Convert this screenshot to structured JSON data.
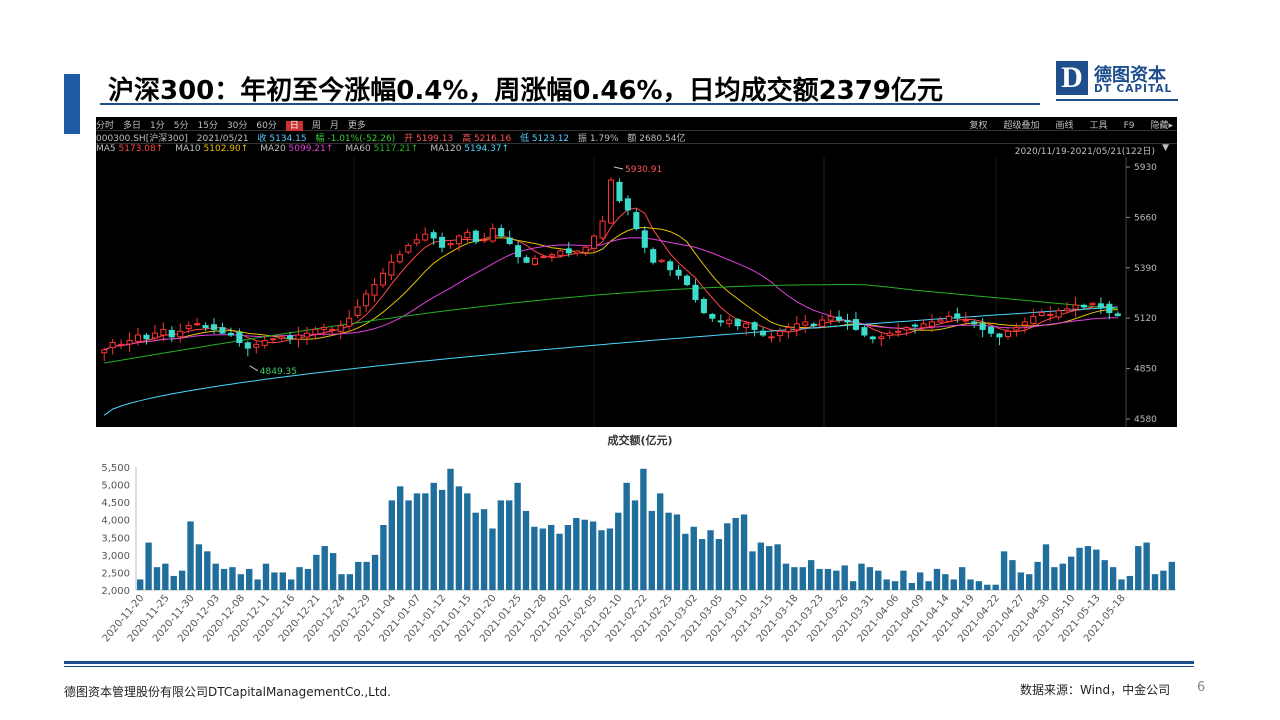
{
  "slide": {
    "title": "沪深300：年初至今涨幅0.4%，周涨幅0.46%，日均成交额2379亿元",
    "logo_letter": "D",
    "logo_cn": "德图资本",
    "logo_en": "DT CAPITAL",
    "footer_company": "德图资本管理股份有限公司DTCapitalManagementCo.,Ltd.",
    "footer_source": "数据来源：Wind，中金公司",
    "page_number": "6",
    "accent_color": "#1f5aa6",
    "brand_color": "#1f4e8c"
  },
  "kline": {
    "periods": [
      "分时",
      "多日",
      "1分",
      "5分",
      "15分",
      "30分",
      "60分",
      "日",
      "周",
      "月",
      "更多"
    ],
    "selected_period": "日",
    "tools": [
      "复权",
      "超级叠加",
      "画线",
      "工具",
      "F9",
      "隐藏▸"
    ],
    "info": {
      "code": "000300.SH[沪深300]",
      "date": "2021/05/21",
      "close": "收 5134.15",
      "change": "幅 -1.01%(-52.26)",
      "open": "开 5199.13",
      "high": "高 5216.16",
      "low": "低 5123.12",
      "amplitude": "振 1.79%",
      "amount": "额 2680.54亿"
    },
    "ma_values": [
      {
        "label": "MA5",
        "value": "5173.08↑",
        "color": "#ff4848"
      },
      {
        "label": "MA10",
        "value": "5102.90↑",
        "color": "#e6c000"
      },
      {
        "label": "MA20",
        "value": "5099.21↑",
        "color": "#e040e0"
      },
      {
        "label": "MA60",
        "value": "5117.21↑",
        "color": "#22b022"
      },
      {
        "label": "MA120",
        "value": "5194.37↑",
        "color": "#4ad8ff"
      }
    ],
    "date_range": "2020/11/19-2021/05/21(122日)",
    "high_marker": "5930.91",
    "low_marker": "4849.35",
    "y_ticks": [
      "5930",
      "5660",
      "5390",
      "5120",
      "4850",
      "4580"
    ],
    "up_color": "#ff3333",
    "down_color": "#3cdccc"
  },
  "chart_data": {
    "type": "bar",
    "title": "成交额(亿元)",
    "ylim": [
      2000,
      5500
    ],
    "y_ticks": [
      "2,000",
      "2,500",
      "3,000",
      "3,500",
      "4,000",
      "4,500",
      "5,000",
      "5,500"
    ],
    "x_tick_labels": [
      "2020-11-20",
      "2020-11-25",
      "2020-11-30",
      "2020-12-03",
      "2020-12-08",
      "2020-12-11",
      "2020-12-16",
      "2020-12-21",
      "2020-12-24",
      "2020-12-29",
      "2021-01-04",
      "2021-01-07",
      "2021-01-12",
      "2021-01-15",
      "2021-01-20",
      "2021-01-25",
      "2021-01-28",
      "2021-02-02",
      "2021-02-05",
      "2021-02-10",
      "2021-02-22",
      "2021-02-25",
      "2021-03-02",
      "2021-03-05",
      "2021-03-10",
      "2021-03-15",
      "2021-03-18",
      "2021-03-23",
      "2021-03-26",
      "2021-03-31",
      "2021-04-06",
      "2021-04-09",
      "2021-04-14",
      "2021-04-19",
      "2021-04-22",
      "2021-04-27",
      "2021-04-30",
      "2021-05-10",
      "2021-05-13",
      "2021-05-18"
    ],
    "values": [
      2300,
      3350,
      2650,
      2750,
      2400,
      2550,
      3950,
      3300,
      3100,
      2750,
      2600,
      2650,
      2450,
      2600,
      2300,
      2750,
      2500,
      2500,
      2300,
      2650,
      2600,
      3000,
      3250,
      3050,
      2450,
      2450,
      2800,
      2800,
      3000,
      3850,
      4550,
      4950,
      4550,
      4750,
      4750,
      5050,
      4850,
      5450,
      4950,
      4750,
      4200,
      4300,
      3750,
      4550,
      4550,
      5050,
      4250,
      3800,
      3750,
      3850,
      3600,
      3850,
      4050,
      4000,
      3950,
      3700,
      3750,
      4200,
      5050,
      4550,
      5450,
      4250,
      4750,
      4200,
      4150,
      3600,
      3800,
      3450,
      3700,
      3450,
      3900,
      4050,
      4150,
      3100,
      3350,
      3250,
      3300,
      2750,
      2650,
      2650,
      2850,
      2600,
      2600,
      2550,
      2700,
      2250,
      2750,
      2650,
      2550,
      2300,
      2250,
      2550,
      2200,
      2500,
      2250,
      2600,
      2450,
      2300,
      2650,
      2300,
      2250,
      2150,
      2150,
      3100,
      2850,
      2500,
      2450,
      2800,
      3300,
      2650,
      2750,
      2950,
      3200,
      3250,
      3150,
      2850,
      2650,
      2300,
      2400,
      3250,
      3350,
      2450,
      2550,
      2800
    ]
  }
}
